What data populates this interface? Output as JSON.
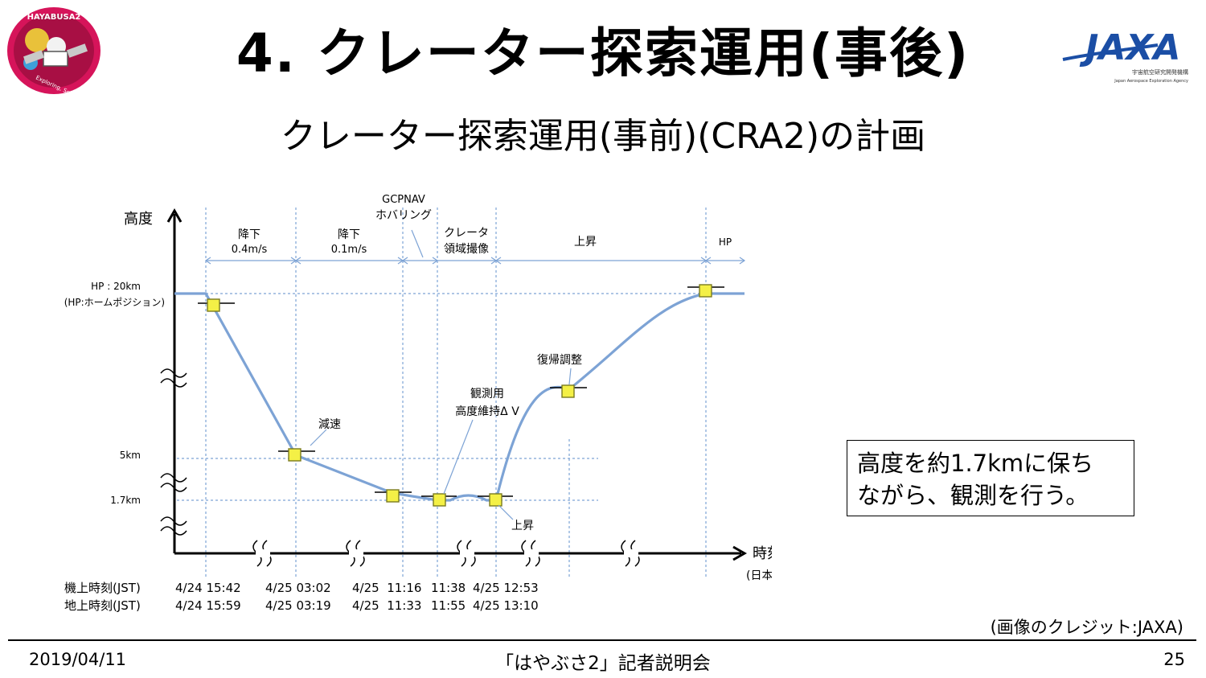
{
  "slide": {
    "title": "4. クレーター探索運用(事後)",
    "subtitle": "クレーター探索運用(事前)(CRA2)の計画",
    "credit": "(画像のクレジット:JAXA)",
    "note": [
      "高度を約1.7kmに保ち",
      "ながら、観測を行う。"
    ]
  },
  "logos": {
    "mission": "HAYABUSA2",
    "mission_tagline": "Exploring, Science",
    "agency": "JAXA",
    "agency_line1": "宇宙航空研究開発機構",
    "agency_line2": "Japan Aerospace Exploration Agency"
  },
  "footer": {
    "date": "2019/04/11",
    "event": "「はやぶさ2」記者説明会",
    "page": "25"
  },
  "diagram": {
    "y_axis_label": "高度",
    "x_axis_label": "時刻",
    "x_axis_sublabel": "(日本時間)",
    "altitude_levels": [
      {
        "label": "HP : 20km",
        "sublabel": "(HP:ホームポジション)"
      },
      {
        "label": "5km"
      },
      {
        "label": "1.7km"
      }
    ],
    "phases": [
      {
        "name": "降下",
        "detail": "0.4m/s"
      },
      {
        "name": "降下",
        "detail": "0.1m/s"
      },
      {
        "name": "GCPNAV",
        "detail": "ホバリング"
      },
      {
        "name": "クレータ",
        "detail": "領域撮像"
      },
      {
        "name": "上昇",
        "detail": ""
      },
      {
        "name": "HP",
        "detail": ""
      }
    ],
    "events": [
      {
        "label": "減速"
      },
      {
        "label": "観測用",
        "label2": "高度維持Δ V"
      },
      {
        "label": "復帰調整"
      },
      {
        "label": "上昇"
      }
    ],
    "time_rows": [
      {
        "label": "機上時刻(JST)",
        "times": [
          "4/24 15:42",
          "4/25 03:02",
          "4/25  11:16",
          "11:38",
          "4/25 12:53"
        ]
      },
      {
        "label": "地上時刻(JST)",
        "times": [
          "4/24 15:59",
          "4/25 03:19",
          "4/25  11:33",
          "11:55",
          "4/25 13:10"
        ]
      }
    ],
    "colors": {
      "trajectory": "#7da3d5",
      "marker_fill": "#f4f046",
      "grid": "#7da3d5",
      "axis": "#000000"
    }
  }
}
